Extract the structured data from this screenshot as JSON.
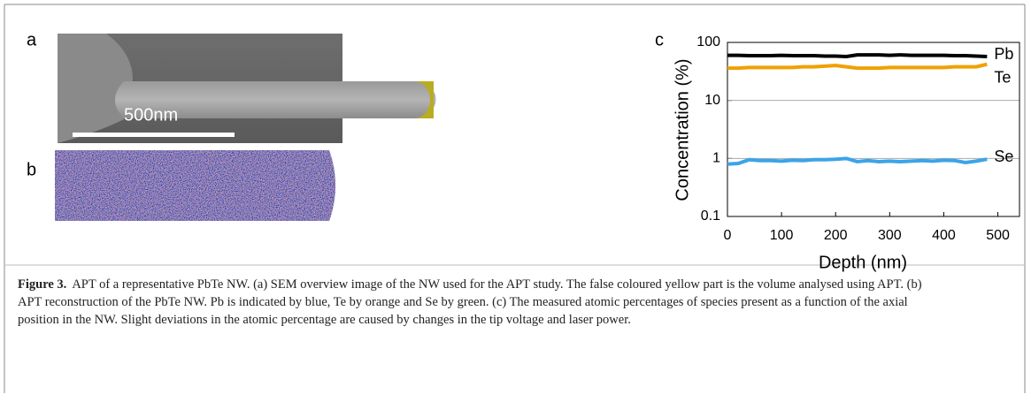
{
  "panels": {
    "a": {
      "label": "a",
      "scale_bar": "500nm"
    },
    "b": {
      "label": "b"
    }
  },
  "chart_data": {
    "type": "line",
    "panel_label": "c",
    "x_label": "Depth (nm)",
    "y_label": "Concentration (%)",
    "x": [
      0,
      20,
      40,
      60,
      80,
      100,
      120,
      140,
      160,
      180,
      200,
      220,
      240,
      260,
      280,
      300,
      320,
      340,
      360,
      380,
      400,
      420,
      440,
      460,
      480
    ],
    "series": [
      {
        "name": "Pb",
        "color": "#000000",
        "values": [
          60,
          60,
          59,
          59,
          59,
          60,
          59,
          59,
          59,
          58,
          58,
          57,
          61,
          61,
          61,
          60,
          61,
          60,
          60,
          60,
          60,
          59,
          59,
          58,
          57
        ]
      },
      {
        "name": "Te",
        "color": "#f0a000",
        "values": [
          36,
          36,
          37,
          37,
          37,
          37,
          37,
          38,
          38,
          39,
          40,
          38,
          36,
          36,
          36,
          37,
          37,
          37,
          37,
          37,
          37,
          38,
          38,
          38,
          42
        ]
      },
      {
        "name": "Se",
        "color": "#3ba4e8",
        "values": [
          0.8,
          0.82,
          0.95,
          0.92,
          0.92,
          0.9,
          0.93,
          0.92,
          0.95,
          0.95,
          0.97,
          1.0,
          0.88,
          0.92,
          0.88,
          0.9,
          0.88,
          0.9,
          0.92,
          0.9,
          0.93,
          0.92,
          0.85,
          0.9,
          0.97
        ]
      }
    ],
    "xlim": [
      0,
      540
    ],
    "xticks": [
      0,
      100,
      200,
      300,
      400,
      500
    ],
    "ylim": [
      0.1,
      100
    ],
    "yticks": [
      0.1,
      1,
      10,
      100
    ],
    "log_y": true,
    "grid": true
  },
  "caption": {
    "label": "Figure 3.",
    "text": "APT of a representative PbTe NW. (a) SEM overview image of the NW used for the APT study. The false coloured yellow part is the volume analysed using APT. (b) APT reconstruction of the PbTe NW. Pb is indicated by blue, Te by orange and Se by green. (c) The measured atomic percentages of species present as a function of the axial position in the NW. Slight deviations in the atomic percentage are caused by changes in the tip voltage and laser power."
  }
}
